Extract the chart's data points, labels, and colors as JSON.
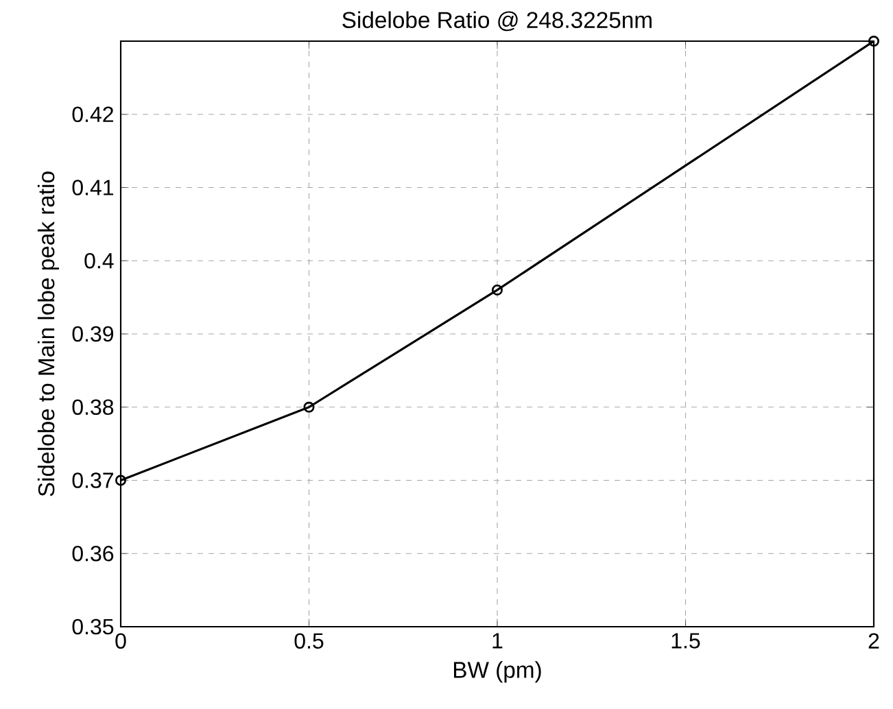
{
  "chart_data": {
    "type": "line",
    "title": "Sidelobe Ratio @ 248.3225nm",
    "xlabel": "BW (pm)",
    "ylabel": "Sidelobe to Main lobe peak ratio",
    "x": [
      0,
      0.5,
      1,
      2
    ],
    "series": [
      {
        "color": "#000000",
        "values": [
          0.37,
          0.38,
          0.396,
          0.43
        ]
      }
    ],
    "xlim": [
      0,
      2
    ],
    "ylim": [
      0.35,
      0.43
    ],
    "xticks": [
      0,
      0.5,
      1,
      1.5,
      2
    ],
    "yticks": [
      0.35,
      0.36,
      0.37,
      0.38,
      0.39,
      0.4,
      0.41,
      0.42
    ],
    "grid": true,
    "marker": "circle",
    "line_style": "solid"
  }
}
